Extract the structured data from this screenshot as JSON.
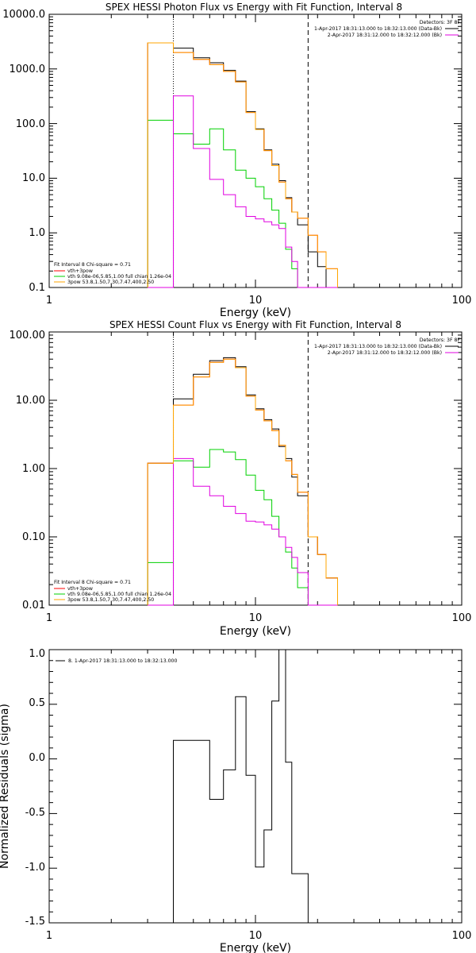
{
  "colors": {
    "data": "#000000",
    "background": "#ff0000",
    "total": "#ffa500",
    "thermal": "#00d000",
    "powerlaw": "#e000e0",
    "axes": "#000000"
  },
  "chart_data": [
    {
      "type": "line",
      "title": "SPEX HESSI Photon Flux vs Energy with Fit Function, Interval 8",
      "xlabel": "Energy (keV)",
      "ylabel": "",
      "xscale": "log",
      "yscale": "log",
      "xlim": [
        1,
        100
      ],
      "ylim": [
        0.1,
        10000
      ],
      "xticks": [
        "1",
        "10",
        "100"
      ],
      "yticks": [
        "0.1",
        "1.0",
        "10.0",
        "100.0",
        "1000.0",
        "10000.0"
      ],
      "vlines": {
        "dotted": 4.0,
        "dashed": 18.0
      },
      "legend_topright": {
        "header": "Detectors: 3F 8F",
        "lines": [
          "1-Apr-2017 18:31:13.000 to 18:32:13.000 (Data-Bk)",
          "2-Apr-2017 18:31:12.000 to 18:32:12.000 (Bk)"
        ]
      },
      "legend_bottomleft": [
        "Fit Interval 8   Chi-square = 0.71",
        "vth+3pow",
        "vth 9.08e-06,5.85,1.00  full chian 1.26e-04",
        "3pow 53.8,1.50,7.30,7.47,400,2.50"
      ],
      "edges": [
        3,
        4,
        5,
        6,
        7,
        8,
        9,
        10,
        11,
        12,
        13,
        14,
        15,
        16,
        18,
        20,
        22,
        25
      ],
      "series": [
        {
          "role": "data",
          "values": [
            3000,
            2400,
            1600,
            1300,
            940,
            600,
            165,
            80,
            33,
            18,
            9,
            4.4,
            2.4,
            1.4,
            0.45,
            0.24,
            0.1
          ]
        },
        {
          "role": "background",
          "values": [
            3000,
            2000,
            1500,
            1200,
            900,
            580,
            160,
            78,
            32,
            17,
            8.5,
            4.2,
            2.4,
            1.85,
            0.9,
            0.45,
            0.22
          ]
        },
        {
          "role": "total",
          "values": [
            3000,
            2000,
            1500,
            1200,
            900,
            580,
            160,
            78,
            32,
            17,
            8.5,
            4.2,
            2.4,
            1.85,
            0.9,
            0.45,
            0.22
          ]
        },
        {
          "role": "thermal",
          "values": [
            115,
            65,
            42,
            80,
            33,
            14,
            10,
            7,
            4.2,
            2.6,
            1.5,
            0.5,
            0.22,
            0.1,
            0.1,
            0.1,
            0.1
          ]
        },
        {
          "role": "powerlaw",
          "values": [
            0.1,
            320,
            35,
            9.5,
            5,
            3,
            2,
            1.8,
            1.6,
            1.4,
            1.2,
            0.55,
            0.3,
            0.1,
            0.1,
            0.1,
            0.1
          ]
        }
      ]
    },
    {
      "type": "line",
      "title": "SPEX HESSI Count Flux vs Energy with Fit Function, Interval 8",
      "xlabel": "Energy (keV)",
      "ylabel": "",
      "xscale": "log",
      "yscale": "log",
      "xlim": [
        1,
        100
      ],
      "ylim": [
        0.01,
        100
      ],
      "xticks": [
        "1",
        "10",
        "100"
      ],
      "yticks": [
        "0.01",
        "0.10",
        "1.00",
        "10.00",
        "100.00"
      ],
      "vlines": {
        "dotted": 4.0,
        "dashed": 18.0
      },
      "legend_topright": {
        "header": "Detectors: 3F 8F",
        "lines": [
          "1-Apr-2017 18:31:13.000 to 18:32:13.000 (Data-Bk)",
          "2-Apr-2017 18:31:12.000 to 18:32:12.000 (Bk)"
        ]
      },
      "legend_bottomleft": [
        "Fit Interval 8   Chi-square = 0.71",
        "vth+3pow",
        "vth 9.08e-06,5.85,1.00  full chian 1.26e-04",
        "3pow 53.8,1.50,7.30,7.47,400,2.50"
      ],
      "edges": [
        3,
        4,
        5,
        6,
        7,
        8,
        9,
        10,
        11,
        12,
        13,
        14,
        15,
        16,
        18,
        20,
        22,
        25
      ],
      "series": [
        {
          "role": "data",
          "values": [
            1.2,
            10.5,
            24,
            38,
            42,
            31,
            12,
            7.5,
            5.2,
            3.8,
            2.1,
            1.4,
            0.75,
            0.4,
            0.1,
            0.055,
            0.025
          ]
        },
        {
          "role": "background",
          "values": [
            1.2,
            8.5,
            22,
            36,
            40,
            30,
            11.5,
            7.2,
            5,
            3.6,
            2.2,
            1.3,
            0.82,
            0.45,
            0.1,
            0.055,
            0.025
          ]
        },
        {
          "role": "total",
          "values": [
            1.2,
            8.5,
            22,
            36,
            40,
            30,
            11.5,
            7.2,
            5,
            3.6,
            2.2,
            1.3,
            0.82,
            0.45,
            0.1,
            0.055,
            0.025
          ]
        },
        {
          "role": "thermal",
          "values": [
            0.042,
            1.3,
            1.05,
            1.9,
            1.75,
            1.35,
            0.8,
            0.48,
            0.35,
            0.2,
            0.1,
            0.06,
            0.035,
            0.018,
            0.01,
            0.01,
            0.01
          ]
        },
        {
          "role": "powerlaw",
          "values": [
            0.01,
            1.4,
            0.55,
            0.4,
            0.28,
            0.22,
            0.17,
            0.165,
            0.15,
            0.13,
            0.1,
            0.07,
            0.05,
            0.03,
            0.01,
            0.01,
            0.01
          ]
        }
      ]
    },
    {
      "type": "line",
      "title": "",
      "xlabel": "Energy (keV)",
      "ylabel": "Normalized Residuals (sigma)",
      "xscale": "log",
      "yscale": "linear",
      "xlim": [
        1,
        100
      ],
      "ylim": [
        -1.5,
        1.0
      ],
      "xticks": [
        "1",
        "10",
        "100"
      ],
      "yticks": [
        "-1.5",
        "-1.0",
        "-0.5",
        "0.0",
        "0.5",
        "1.0"
      ],
      "legend_topleft": "8. 1-Apr-2017 18:31:13.000 to 18:32:13.000",
      "edges": [
        4,
        5,
        6,
        7,
        8,
        9,
        10,
        11,
        12,
        13,
        14,
        15,
        16,
        18
      ],
      "series": [
        {
          "role": "data",
          "values": [
            0.17,
            0.17,
            -0.37,
            -0.1,
            0.57,
            -0.15,
            -0.99,
            -0.65,
            0.53,
            1.0,
            -0.03,
            -1.05,
            -1.05
          ]
        }
      ]
    }
  ]
}
